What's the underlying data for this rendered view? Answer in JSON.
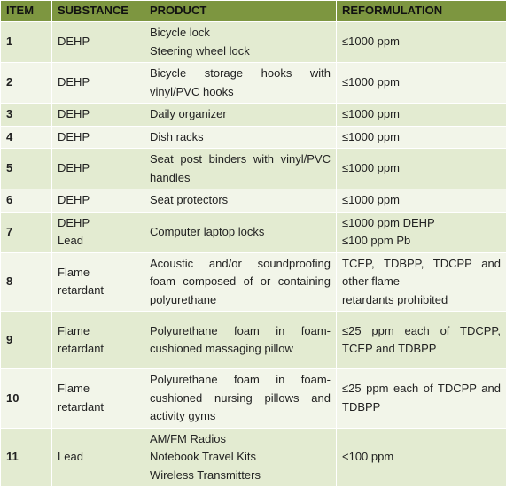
{
  "headers": {
    "item": "ITEM",
    "substance": "SUBSTANCE",
    "product": "PRODUCT",
    "reformulation": "REFORMULATION"
  },
  "rows": [
    {
      "item": "1",
      "substance": [
        "DEHP"
      ],
      "product": [
        "Bicycle lock",
        "Steering wheel lock"
      ],
      "reformulation": [
        "≤1000 ppm"
      ]
    },
    {
      "item": "2",
      "substance": [
        "DEHP"
      ],
      "product": [
        "Bicycle storage hooks with vinyl/PVC hooks"
      ],
      "reformulation": [
        "≤1000 ppm"
      ]
    },
    {
      "item": "3",
      "substance": [
        "DEHP"
      ],
      "product": [
        "Daily organizer"
      ],
      "reformulation": [
        "≤1000 ppm"
      ]
    },
    {
      "item": "4",
      "substance": [
        "DEHP"
      ],
      "product": [
        "Dish racks"
      ],
      "reformulation": [
        "≤1000 ppm"
      ]
    },
    {
      "item": "5",
      "substance": [
        "DEHP"
      ],
      "product": [
        "Seat post binders with vinyl/PVC handles"
      ],
      "reformulation": [
        "≤1000 ppm"
      ]
    },
    {
      "item": "6",
      "substance": [
        "DEHP"
      ],
      "product": [
        "Seat protectors"
      ],
      "reformulation": [
        "≤1000 ppm"
      ]
    },
    {
      "item": "7",
      "substance": [
        "DEHP",
        "Lead"
      ],
      "product": [
        "Computer laptop locks"
      ],
      "reformulation": [
        "≤1000 ppm DEHP",
        "≤100 ppm Pb"
      ]
    },
    {
      "item": "8",
      "substance": [
        "Flame retardant"
      ],
      "product": [
        "Acoustic and/or soundproofing foam composed of or containing polyurethane"
      ],
      "reformulation": [
        "TCEP, TDBPP, TDCPP and other flame",
        "retardants prohibited"
      ]
    },
    {
      "item": "9",
      "substance": [
        "Flame retardant"
      ],
      "product": [
        "Polyurethane foam in foam-cushioned massaging pillow"
      ],
      "reformulation": [
        "≤25 ppm each of TDCPP, TCEP and TDBPP"
      ]
    },
    {
      "item": "10",
      "substance": [
        "Flame retardant"
      ],
      "product": [
        "Polyurethane foam in foam-cushioned nursing pillows and activity gyms"
      ],
      "reformulation": [
        "≤25 ppm each of TDCPP and TDBPP"
      ]
    },
    {
      "item": "11",
      "substance": [
        "Lead"
      ],
      "product": [
        "AM/FM Radios",
        "Notebook Travel Kits",
        "Wireless Transmitters"
      ],
      "reformulation": [
        "<100 ppm"
      ]
    }
  ]
}
